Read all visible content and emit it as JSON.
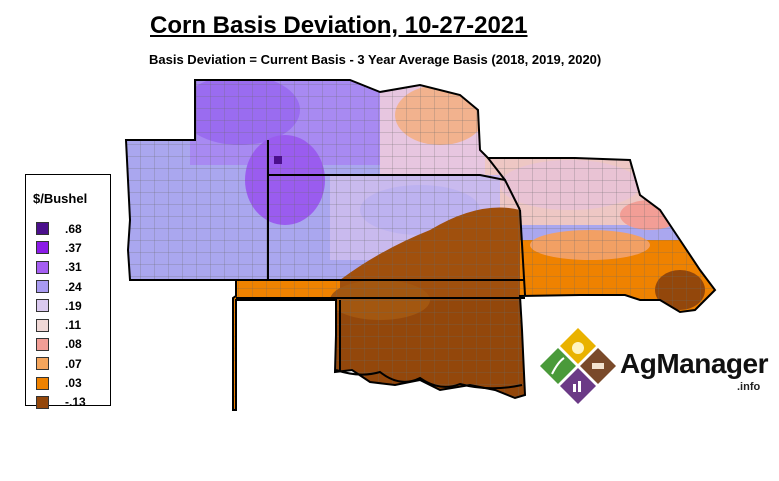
{
  "title": "Corn Basis Deviation, 10-27-2021",
  "subtitle": "Basis Deviation = Current Basis - 3 Year Average Basis (2018, 2019, 2020)",
  "legend": {
    "title": "$/Bushel",
    "items": [
      {
        "label": ".68",
        "color": "#4b0f8c"
      },
      {
        "label": ".37",
        "color": "#8b1be8"
      },
      {
        "label": ".31",
        "color": "#a55ef2"
      },
      {
        "label": ".24",
        "color": "#a89af0"
      },
      {
        "label": ".19",
        "color": "#dac9ef"
      },
      {
        "label": ".11",
        "color": "#f0d8d6"
      },
      {
        "label": ".08",
        "color": "#f29e96"
      },
      {
        "label": ".07",
        "color": "#f4a55c"
      },
      {
        "label": ".03",
        "color": "#ef8200"
      },
      {
        "label": "-.13",
        "color": "#93470b"
      }
    ]
  },
  "logo": {
    "name": "AgManager",
    "suffix": ".info"
  },
  "map": {
    "state_colors": {
      "north_purple": "#a87ef2",
      "west_periwinkle": "#aaa7ef",
      "central_lavender": "#c7b6ee",
      "east_pink": "#eec7c4",
      "south_brown": "#93470b",
      "south_orange": "#ef8200"
    }
  }
}
